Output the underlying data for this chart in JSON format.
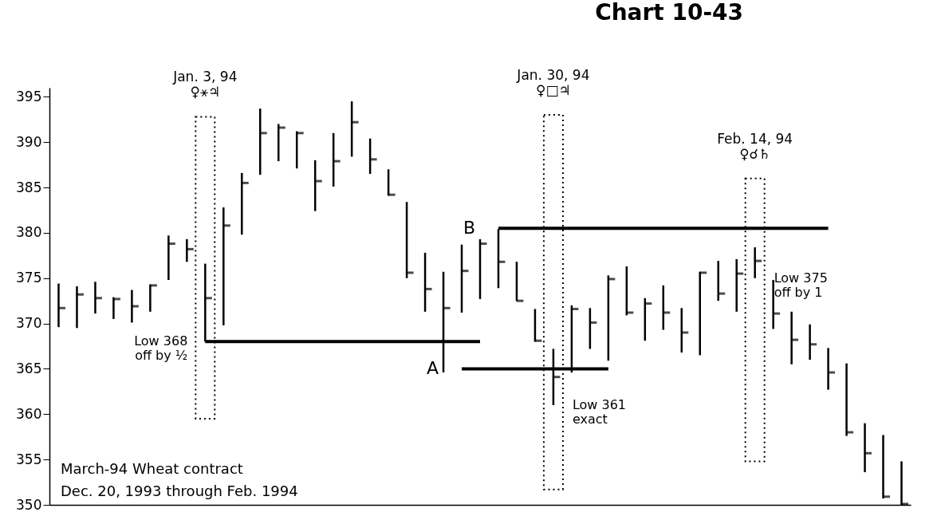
{
  "chart_data": {
    "type": "bar",
    "title": "Chart 10-43",
    "categories": [
      null,
      null,
      null,
      null,
      null,
      null,
      null,
      null,
      null,
      null,
      null,
      null,
      null,
      null,
      null,
      null,
      null,
      null,
      null,
      null,
      null,
      null,
      null,
      null,
      null,
      null,
      null,
      null,
      null,
      null,
      null,
      null,
      null,
      null,
      null,
      null,
      null,
      null,
      null,
      null,
      null,
      null,
      null,
      null,
      null,
      null,
      null
    ],
    "series": [
      {
        "color": "#000000",
        "values": [
          4.8,
          4.6,
          3.5,
          2.4,
          3.6,
          3.0,
          4.9,
          2.5,
          8.6,
          13.0,
          6.8,
          7.3,
          4.1,
          4.1,
          5.6,
          5.9,
          6.1,
          3.9,
          2.9,
          8.4,
          6.5,
          11.1,
          7.5,
          6.6,
          6.5,
          4.3,
          3.6,
          6.2,
          7.4,
          4.5,
          9.4,
          5.4,
          4.7,
          4.9,
          4.9,
          9.2,
          4.4,
          5.8,
          3.4,
          5.4,
          5.8,
          3.9,
          4.6,
          8.0,
          5.4,
          7.0,
          4.8
        ],
        "base": [
          369.6,
          369.5,
          371.1,
          370.5,
          370.1,
          371.3,
          374.8,
          376.8,
          368,
          369.8,
          379.8,
          386.4,
          387.9,
          387.1,
          382.4,
          385.1,
          388.4,
          386.5,
          384.1,
          375,
          371.3,
          364.6,
          371.2,
          372.7,
          373.9,
          372.5,
          368,
          361,
          364.6,
          367.2,
          365.9,
          370.9,
          368.1,
          369.3,
          366.8,
          366.5,
          372.5,
          371.3,
          375,
          369.4,
          365.5,
          366,
          362.7,
          357.6,
          353.6,
          350.7,
          350
        ]
      },
      {
        "type": "scatter",
        "color": "#000000",
        "values": [
          371.7,
          373.2,
          372.8,
          372.7,
          371.9,
          374.2,
          378.8,
          378.2,
          372.8,
          380.8,
          385.5,
          391,
          391.6,
          391,
          385.7,
          387.9,
          392.2,
          388.1,
          384.2,
          375.6,
          373.8,
          371.7,
          375.8,
          378.8,
          376.8,
          372.5,
          368.1,
          364.1,
          371.6,
          370.1,
          374.9,
          371.2,
          372.2,
          371.2,
          369,
          375.6,
          373.3,
          375.5,
          376.9,
          371.1,
          368.2,
          367.7,
          364.6,
          358,
          355.7,
          350.9,
          350.1
        ]
      },
      {
        "type": "bar",
        "name": "Jan. 3, 94\n♀⚹♃",
        "color": "#000000",
        "line_style": "dotted",
        "values": [
          null,
          null,
          null,
          null,
          null,
          null,
          null,
          null,
          33.3,
          null,
          null,
          null,
          null,
          null,
          null,
          null,
          null,
          null,
          null,
          null,
          null,
          null,
          null,
          null,
          null,
          null,
          null,
          null,
          null,
          null,
          null,
          null,
          null,
          null,
          null,
          null,
          null,
          null,
          null,
          null,
          null,
          null,
          null,
          null,
          null,
          null,
          null
        ],
        "base": [
          null,
          null,
          null,
          null,
          null,
          null,
          null,
          null,
          359.5,
          null,
          null,
          null,
          null,
          null,
          null,
          null,
          null,
          null,
          null,
          null,
          null,
          null,
          null,
          null,
          null,
          null,
          null,
          null,
          null,
          null,
          null,
          null,
          null,
          null,
          null,
          null,
          null,
          null,
          null,
          null,
          null,
          null,
          null,
          null,
          null,
          null,
          null
        ]
      },
      {
        "type": "bar",
        "name": "Jan. 30, 94\n♀□♃",
        "color": "#000000",
        "line_style": "dotted",
        "values": [
          null,
          null,
          null,
          null,
          null,
          null,
          null,
          null,
          null,
          null,
          null,
          null,
          null,
          null,
          null,
          null,
          null,
          null,
          null,
          null,
          null,
          null,
          null,
          null,
          null,
          null,
          null,
          41.3,
          null,
          null,
          null,
          null,
          null,
          null,
          null,
          null,
          null,
          null,
          null,
          null,
          null,
          null,
          null,
          null,
          null,
          null,
          null
        ],
        "base": [
          null,
          null,
          null,
          null,
          null,
          null,
          null,
          null,
          null,
          null,
          null,
          null,
          null,
          null,
          null,
          null,
          null,
          null,
          null,
          null,
          null,
          null,
          null,
          null,
          null,
          null,
          null,
          351.7,
          null,
          null,
          null,
          null,
          null,
          null,
          null,
          null,
          null,
          null,
          null,
          null,
          null,
          null,
          null,
          null,
          null,
          null,
          null
        ]
      },
      {
        "type": "bar",
        "name": "Feb. 14, 94\n♀☌♄",
        "color": "#000000",
        "line_style": "dotted",
        "values": [
          null,
          null,
          null,
          null,
          null,
          null,
          null,
          null,
          null,
          null,
          null,
          null,
          null,
          null,
          null,
          null,
          null,
          null,
          null,
          null,
          null,
          null,
          null,
          null,
          null,
          null,
          null,
          null,
          null,
          null,
          null,
          null,
          null,
          null,
          null,
          null,
          null,
          null,
          31.2,
          null,
          null,
          null,
          null,
          null,
          null,
          null,
          null
        ],
        "base": [
          null,
          null,
          null,
          null,
          null,
          null,
          null,
          null,
          null,
          null,
          null,
          null,
          null,
          null,
          null,
          null,
          null,
          null,
          null,
          null,
          null,
          null,
          null,
          null,
          null,
          null,
          null,
          null,
          null,
          null,
          null,
          null,
          null,
          null,
          null,
          null,
          null,
          null,
          354.8,
          null,
          null,
          null,
          null,
          null,
          null,
          null,
          null
        ]
      },
      {
        "type": "line",
        "color": "#000000",
        "values": [
          null,
          null,
          null,
          null,
          null,
          null,
          null,
          null,
          368,
          368,
          368,
          368,
          368,
          368,
          368,
          368,
          368,
          368,
          368,
          368,
          368,
          368,
          368,
          368,
          null,
          null,
          null,
          null,
          null,
          null,
          null,
          null,
          null,
          null,
          null,
          null,
          null,
          null,
          null,
          null,
          null,
          null,
          null,
          null,
          null,
          null,
          null
        ]
      },
      {
        "type": "line",
        "name": "A",
        "color": "#000000",
        "values": [
          null,
          null,
          null,
          null,
          null,
          null,
          null,
          null,
          null,
          null,
          null,
          null,
          null,
          null,
          null,
          null,
          null,
          null,
          null,
          null,
          null,
          null,
          365,
          365,
          365,
          365,
          365,
          365,
          365,
          365,
          365,
          null,
          null,
          null,
          null,
          null,
          null,
          null,
          null,
          null,
          null,
          null,
          null,
          null,
          null,
          null,
          null
        ]
      },
      {
        "type": "line",
        "name": "B",
        "color": "#000000",
        "values": [
          null,
          null,
          null,
          null,
          null,
          null,
          null,
          null,
          null,
          null,
          null,
          null,
          null,
          null,
          null,
          null,
          null,
          null,
          null,
          null,
          null,
          null,
          null,
          null,
          380.5,
          380.5,
          380.5,
          380.5,
          380.5,
          380.5,
          380.5,
          380.5,
          380.5,
          380.5,
          380.5,
          380.5,
          380.5,
          380.5,
          380.5,
          380.5,
          380.5,
          380.5,
          380.5,
          null,
          null,
          null,
          null
        ]
      }
    ],
    "annotations": [
      "Low 368\noff by ½",
      "Low 361\nexact",
      "Low 375\noff by 1",
      "March-94 Wheat contract",
      "Dec. 20, 1993 through Feb. 1994"
    ],
    "ylim": [
      350,
      396
    ],
    "yticks": [
      350,
      355,
      360,
      365,
      370,
      375,
      380,
      385,
      390,
      395
    ],
    "tick_labels": "y"
  }
}
